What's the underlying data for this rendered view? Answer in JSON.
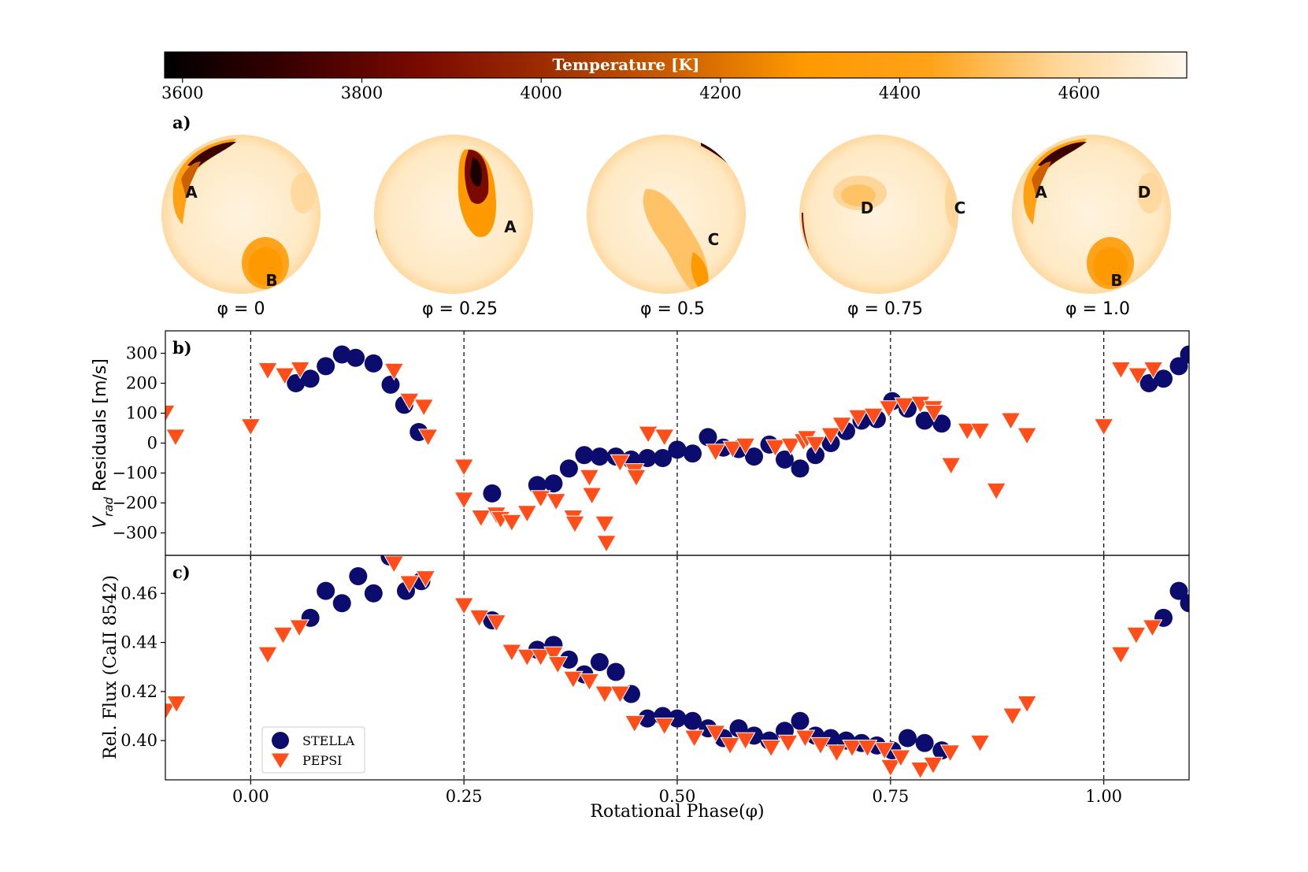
{
  "colorbar": {
    "label": "Temperature [K]",
    "ticks": [
      "3600",
      "3800",
      "4000",
      "4200",
      "4400",
      "4600"
    ],
    "range": [
      3580,
      4720
    ]
  },
  "maps": {
    "panel_label": "a)",
    "items": [
      {
        "phase": "φ = 0",
        "spots": [
          "A",
          "B"
        ]
      },
      {
        "phase": "φ = 0.25",
        "spots": [
          "A"
        ]
      },
      {
        "phase": "φ = 0.5",
        "spots": [
          "C"
        ]
      },
      {
        "phase": "φ = 0.75",
        "spots": [
          "D",
          "C"
        ]
      },
      {
        "phase": "φ = 1.0",
        "spots": [
          "A",
          "D",
          "B"
        ]
      }
    ]
  },
  "colors": {
    "stella": "#0c0c6e",
    "pepsi": "#ff4e1a",
    "cmap": [
      "#000000",
      "#3b0000",
      "#7a0a00",
      "#9e2e00",
      "#cc5f00",
      "#ff9900",
      "#ffa31a",
      "#ffd699",
      "#fff8ee"
    ]
  },
  "chart_data": [
    {
      "type": "scatter",
      "panel_label": "b)",
      "ylabel": "V_rad Residuals [m/s]",
      "ylabel_main": "V",
      "ylabel_sub": "rad",
      "ylabel_rest": " Residuals [m/s]",
      "xlim": [
        -0.1,
        1.1
      ],
      "ylim": [
        -375,
        375
      ],
      "yticks": [
        {
          "v": 300,
          "label": "300"
        },
        {
          "v": 200,
          "label": "200"
        },
        {
          "v": 100,
          "label": "100"
        },
        {
          "v": 0,
          "label": "0"
        },
        {
          "v": -100,
          "label": "−100"
        },
        {
          "v": -200,
          "label": "−200"
        },
        {
          "v": -300,
          "label": "−300"
        }
      ],
      "vlines": [
        0.0,
        0.25,
        0.5,
        0.75,
        1.0
      ],
      "series": [
        {
          "name": "STELLA",
          "marker": "circle",
          "x": [
            0.053,
            0.07,
            0.088,
            0.107,
            0.123,
            0.144,
            0.164,
            0.18,
            0.197,
            0.283,
            0.336,
            0.355,
            0.373,
            0.391,
            0.409,
            0.428,
            0.446,
            0.465,
            0.483,
            0.5,
            0.518,
            0.536,
            0.554,
            0.572,
            0.59,
            0.608,
            0.626,
            0.644,
            0.662,
            0.68,
            0.698,
            0.716,
            0.734,
            0.752,
            0.77,
            0.79,
            0.81,
            1.053,
            1.07,
            1.088,
            1.1
          ],
          "y": [
            200,
            215,
            257,
            296,
            285,
            266,
            195,
            128,
            37,
            -168,
            -140,
            -135,
            -85,
            -40,
            -45,
            -45,
            -55,
            -50,
            -50,
            -22,
            -35,
            20,
            -15,
            -20,
            -45,
            -5,
            -55,
            -85,
            -40,
            0,
            40,
            75,
            80,
            140,
            115,
            75,
            65,
            200,
            215,
            257,
            296
          ]
        },
        {
          "name": "PEPSI",
          "marker": "triangle",
          "x": [
            -0.1,
            -0.088,
            0.0,
            0.02,
            0.04,
            0.058,
            0.168,
            0.186,
            0.203,
            0.208,
            0.25,
            0.25,
            0.27,
            0.288,
            0.293,
            0.306,
            0.324,
            0.34,
            0.358,
            0.378,
            0.38,
            0.397,
            0.4,
            0.415,
            0.417,
            0.433,
            0.45,
            0.452,
            0.466,
            0.485,
            0.545,
            0.565,
            0.58,
            0.615,
            0.633,
            0.648,
            0.652,
            0.662,
            0.68,
            0.693,
            0.712,
            0.73,
            0.748,
            0.766,
            0.785,
            0.8,
            0.801,
            0.821,
            0.84,
            0.855,
            0.874,
            0.891,
            0.91,
            1.0,
            1.02,
            1.04,
            1.058
          ],
          "y": [
            100,
            20,
            55,
            242,
            225,
            245,
            240,
            140,
            120,
            20,
            -80,
            -190,
            -250,
            -240,
            -255,
            -265,
            -235,
            -185,
            -195,
            -250,
            -270,
            -115,
            -175,
            -270,
            -335,
            -65,
            -95,
            -115,
            30,
            20,
            -30,
            -20,
            -10,
            -15,
            -10,
            5,
            15,
            -5,
            25,
            60,
            85,
            90,
            115,
            125,
            130,
            115,
            100,
            -75,
            40,
            40,
            -160,
            75,
            25,
            55,
            245,
            225,
            245
          ]
        }
      ]
    },
    {
      "type": "scatter",
      "panel_label": "c)",
      "xlabel": "Rotational Phase(φ)",
      "ylabel": "Rel. Flux (CaII 8542)",
      "xlim": [
        -0.1,
        1.1
      ],
      "ylim": [
        0.384,
        0.4755
      ],
      "xticks": [
        {
          "v": 0.0,
          "label": "0.00"
        },
        {
          "v": 0.25,
          "label": "0.25"
        },
        {
          "v": 0.5,
          "label": "0.50"
        },
        {
          "v": 0.75,
          "label": "0.75"
        },
        {
          "v": 1.0,
          "label": "1.00"
        }
      ],
      "yticks": [
        {
          "v": 0.46,
          "label": "0.46"
        },
        {
          "v": 0.44,
          "label": "0.44"
        },
        {
          "v": 0.42,
          "label": "0.42"
        },
        {
          "v": 0.4,
          "label": "0.40"
        }
      ],
      "vlines": [
        0.0,
        0.25,
        0.5,
        0.75,
        1.0
      ],
      "legend": {
        "location": "lower-left",
        "entries": [
          "STELLA",
          "PEPSI"
        ]
      },
      "series": [
        {
          "name": "STELLA",
          "marker": "circle",
          "x": [
            0.07,
            0.088,
            0.107,
            0.126,
            0.144,
            0.163,
            0.182,
            0.2,
            0.283,
            0.336,
            0.355,
            0.373,
            0.391,
            0.409,
            0.428,
            0.446,
            0.465,
            0.483,
            0.5,
            0.518,
            0.536,
            0.554,
            0.572,
            0.59,
            0.608,
            0.626,
            0.644,
            0.662,
            0.68,
            0.698,
            0.716,
            0.734,
            0.752,
            0.77,
            0.79,
            0.81,
            1.07,
            1.088,
            1.1
          ],
          "y": [
            0.45,
            0.461,
            0.456,
            0.467,
            0.46,
            0.475,
            0.461,
            0.465,
            0.449,
            0.437,
            0.439,
            0.433,
            0.427,
            0.432,
            0.428,
            0.419,
            0.409,
            0.41,
            0.409,
            0.408,
            0.405,
            0.401,
            0.405,
            0.402,
            0.4,
            0.404,
            0.408,
            0.402,
            0.401,
            0.4,
            0.399,
            0.398,
            0.396,
            0.401,
            0.399,
            0.396,
            0.45,
            0.461,
            0.456
          ]
        },
        {
          "name": "PEPSI",
          "marker": "triangle",
          "x": [
            -0.1,
            -0.087,
            0.02,
            0.038,
            0.057,
            0.168,
            0.186,
            0.205,
            0.25,
            0.268,
            0.288,
            0.306,
            0.324,
            0.34,
            0.355,
            0.36,
            0.378,
            0.397,
            0.415,
            0.433,
            0.45,
            0.485,
            0.52,
            0.545,
            0.562,
            0.58,
            0.61,
            0.63,
            0.65,
            0.668,
            0.687,
            0.705,
            0.723,
            0.743,
            0.75,
            0.762,
            0.785,
            0.8,
            0.82,
            0.855,
            0.893,
            0.91,
            1.02,
            1.038,
            1.057
          ],
          "y": [
            0.412,
            0.415,
            0.435,
            0.443,
            0.446,
            0.472,
            0.464,
            0.466,
            0.455,
            0.45,
            0.448,
            0.436,
            0.434,
            0.434,
            0.435,
            0.431,
            0.425,
            0.424,
            0.419,
            0.419,
            0.407,
            0.406,
            0.401,
            0.403,
            0.398,
            0.4,
            0.397,
            0.399,
            0.401,
            0.398,
            0.395,
            0.397,
            0.397,
            0.396,
            0.389,
            0.393,
            0.388,
            0.39,
            0.395,
            0.399,
            0.41,
            0.415,
            0.435,
            0.443,
            0.446
          ]
        }
      ]
    }
  ]
}
